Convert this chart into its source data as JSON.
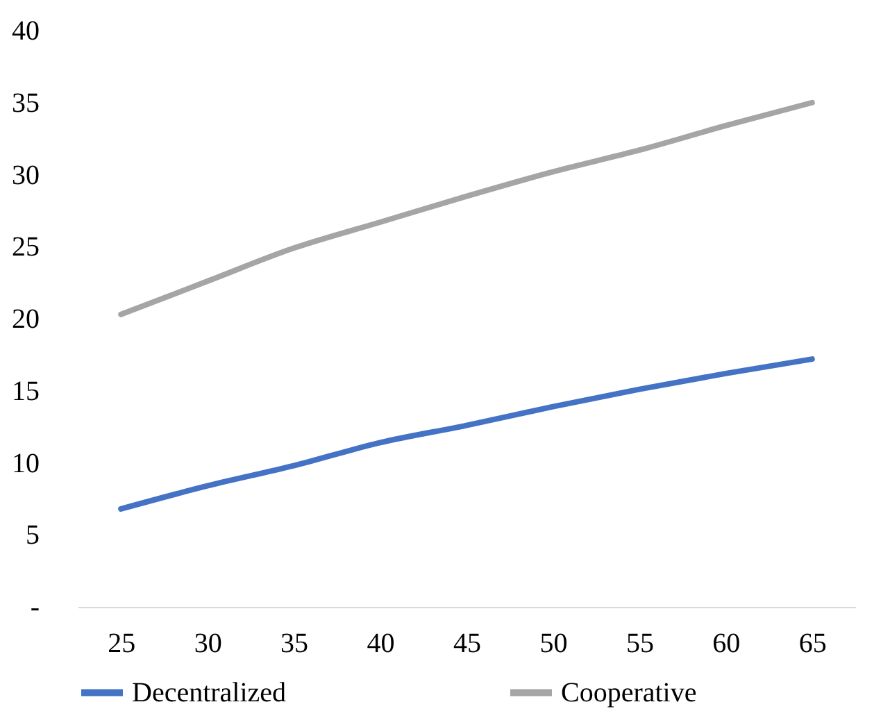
{
  "chart_data": {
    "type": "line",
    "categories": [
      "25",
      "30",
      "35",
      "40",
      "45",
      "50",
      "55",
      "60",
      "65"
    ],
    "series": [
      {
        "name": "Decentralized",
        "color": "#4472c4",
        "values": [
          6.8,
          8.4,
          9.8,
          11.4,
          12.6,
          13.9,
          15.1,
          16.2,
          17.2
        ]
      },
      {
        "name": "Cooperative",
        "color": "#a5a5a5",
        "values": [
          20.3,
          22.6,
          24.9,
          26.7,
          28.5,
          30.2,
          31.7,
          33.4,
          35.0
        ]
      }
    ],
    "ylim": [
      0,
      40
    ],
    "yticks": [
      {
        "value": 0,
        "label": "-"
      },
      5,
      10,
      15,
      20,
      25,
      30,
      35,
      40
    ],
    "grid": false,
    "legend": "bottom",
    "marker": "none",
    "line_style": "solid"
  }
}
